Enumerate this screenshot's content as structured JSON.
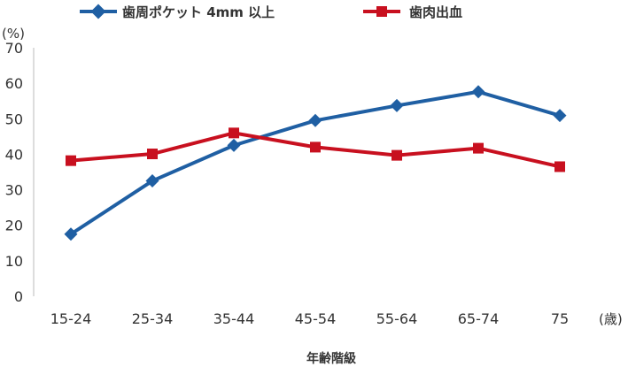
{
  "chart_data": {
    "type": "line",
    "categories": [
      "15-24",
      "25-34",
      "35-44",
      "45-54",
      "55-64",
      "65-74",
      "75"
    ],
    "series": [
      {
        "name": "歯周ポケット 4mm 以上",
        "color": "#1f5fa3",
        "marker": "diamond",
        "values": [
          17.5,
          32.5,
          42.5,
          49.5,
          53.7,
          57.6,
          50.9
        ]
      },
      {
        "name": "歯肉出血",
        "color": "#c8101f",
        "marker": "square",
        "values": [
          38.2,
          40.1,
          46.0,
          42.0,
          39.7,
          41.7,
          36.5
        ]
      }
    ],
    "y_ticks": [
      "0",
      "10",
      "20",
      "30",
      "40",
      "50",
      "60",
      "70"
    ],
    "ylim": [
      0,
      70
    ],
    "y_unit": "(%)",
    "x_unit": "(歳)",
    "xlabel": "年齢階級",
    "grid": false,
    "legend": "top"
  }
}
